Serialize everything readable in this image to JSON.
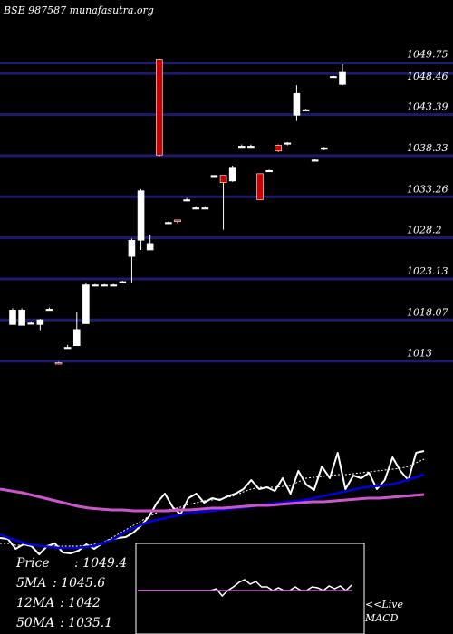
{
  "header": {
    "title": "BSE 987587 munafasutra.org"
  },
  "colors": {
    "background": "#000000",
    "gridline": "#1c1c6e",
    "bull_candle": "#ffffff",
    "bear_candle": "#cc0000",
    "price_line": "#ffffff",
    "ma_short": "#ffffff",
    "ma_mid": "#0000dd",
    "ma_long": "#cc55cc"
  },
  "chart_data": [
    {
      "type": "candlestick",
      "title": "BSE 987587 munafasutra.org",
      "ylim": [
        1008.5,
        1052.5
      ],
      "price_levels": [
        "1049.75",
        "1048.46",
        "1043.39",
        "1038.33",
        "1033.26",
        "1028.2",
        "1023.13",
        "1018.07",
        "1013"
      ],
      "candles": [
        {
          "o": 1017.5,
          "h": 1019.5,
          "l": 1017.5,
          "c": 1019.3
        },
        {
          "o": 1017.4,
          "h": 1019.5,
          "l": 1017.4,
          "c": 1019.3
        },
        {
          "o": 1017.7,
          "h": 1017.9,
          "l": 1017.6,
          "c": 1017.7
        },
        {
          "o": 1017.5,
          "h": 1018.2,
          "l": 1016.8,
          "c": 1018.1
        },
        {
          "o": 1019.4,
          "h": 1019.6,
          "l": 1019.3,
          "c": 1019.4
        },
        {
          "o": 1012.8,
          "h": 1012.9,
          "l": 1012.6,
          "c": 1012.7
        },
        {
          "o": 1014.7,
          "h": 1015.0,
          "l": 1014.6,
          "c": 1014.7
        },
        {
          "o": 1014.9,
          "h": 1019.1,
          "l": 1014.9,
          "c": 1016.9
        },
        {
          "o": 1017.6,
          "h": 1022.7,
          "l": 1017.6,
          "c": 1022.4
        },
        {
          "o": 1022.4,
          "h": 1022.5,
          "l": 1022.3,
          "c": 1022.4
        },
        {
          "o": 1022.4,
          "h": 1022.5,
          "l": 1022.3,
          "c": 1022.4
        },
        {
          "o": 1022.4,
          "h": 1022.5,
          "l": 1022.3,
          "c": 1022.4
        },
        {
          "o": 1022.7,
          "h": 1022.9,
          "l": 1022.7,
          "c": 1022.8
        },
        {
          "o": 1025.9,
          "h": 1028.1,
          "l": 1022.7,
          "c": 1027.9
        },
        {
          "o": 1027.9,
          "h": 1034.2,
          "l": 1026.7,
          "c": 1034.0
        },
        {
          "o": 1026.7,
          "h": 1028.6,
          "l": 1026.7,
          "c": 1027.5
        },
        {
          "o": 1050.2,
          "h": 1050.3,
          "l": 1038.2,
          "c": 1038.4
        },
        {
          "o": 1030.1,
          "h": 1030.2,
          "l": 1029.9,
          "c": 1030.1
        },
        {
          "o": 1030.4,
          "h": 1030.4,
          "l": 1030.0,
          "c": 1030.2
        },
        {
          "o": 1032.9,
          "h": 1033.1,
          "l": 1032.7,
          "c": 1032.9
        },
        {
          "o": 1031.9,
          "h": 1032.1,
          "l": 1031.8,
          "c": 1031.9
        },
        {
          "o": 1031.9,
          "h": 1032.1,
          "l": 1031.8,
          "c": 1031.9
        },
        {
          "o": 1035.9,
          "h": 1035.9,
          "l": 1035.9,
          "c": 1035.9
        },
        {
          "o": 1035.9,
          "h": 1035.9,
          "l": 1029.2,
          "c": 1035.0
        },
        {
          "o": 1035.2,
          "h": 1037.1,
          "l": 1035.1,
          "c": 1036.9
        },
        {
          "o": 1039.5,
          "h": 1039.7,
          "l": 1039.4,
          "c": 1039.5
        },
        {
          "o": 1039.5,
          "h": 1039.7,
          "l": 1039.4,
          "c": 1039.5
        },
        {
          "o": 1036.1,
          "h": 1036.1,
          "l": 1032.9,
          "c": 1032.9
        },
        {
          "o": 1036.5,
          "h": 1036.6,
          "l": 1036.4,
          "c": 1036.5
        },
        {
          "o": 1039.6,
          "h": 1039.7,
          "l": 1038.8,
          "c": 1038.9
        },
        {
          "o": 1039.8,
          "h": 1040.0,
          "l": 1039.6,
          "c": 1039.9
        },
        {
          "o": 1043.3,
          "h": 1047.0,
          "l": 1042.6,
          "c": 1046.0
        },
        {
          "o": 1044.0,
          "h": 1044.1,
          "l": 1043.9,
          "c": 1044.0
        },
        {
          "o": 1037.8,
          "h": 1037.9,
          "l": 1037.7,
          "c": 1037.8
        },
        {
          "o": 1039.1,
          "h": 1039.4,
          "l": 1039.0,
          "c": 1039.3
        },
        {
          "o": 1048.1,
          "h": 1048.2,
          "l": 1048.0,
          "c": 1048.1
        },
        {
          "o": 1047.1,
          "h": 1049.6,
          "l": 1047.0,
          "c": 1048.7
        }
      ]
    },
    {
      "type": "line",
      "series": [
        {
          "key": "price",
          "values": [
            594,
            595,
            606,
            601,
            603,
            612,
            603,
            600,
            610,
            611,
            608,
            601,
            606,
            600,
            596,
            594,
            593,
            588,
            580,
            570,
            555,
            545,
            560,
            568,
            550,
            545,
            555,
            550,
            552,
            548,
            545,
            540,
            530,
            540,
            538,
            542,
            528,
            545,
            520,
            535,
            541,
            515,
            528,
            500,
            540,
            525,
            528,
            522,
            540,
            530,
            505,
            520,
            530,
            500,
            498
          ]
        },
        {
          "key": "ma_short",
          "values": [
            600,
            600,
            602,
            602,
            602,
            603,
            603,
            603,
            603,
            603,
            603,
            602,
            601,
            599,
            595,
            590,
            585,
            580,
            575,
            570,
            566,
            563,
            562,
            560,
            557,
            555,
            553,
            552,
            551,
            549,
            547,
            543,
            540,
            538,
            538,
            538,
            537,
            536,
            532,
            528,
            527,
            526,
            525,
            524,
            524,
            523,
            522,
            521,
            520,
            519,
            518,
            517,
            515,
            511,
            507
          ]
        },
        {
          "key": "ma_mid",
          "values": [
            590,
            594,
            597,
            600,
            602,
            603,
            604,
            605,
            605,
            605,
            604,
            603,
            600,
            597,
            592,
            586,
            582,
            578,
            575,
            573,
            571,
            569,
            567,
            566,
            565,
            564,
            563,
            562,
            561,
            560,
            559,
            557,
            556,
            555,
            554,
            553,
            552,
            550,
            548,
            546,
            544,
            542,
            540,
            538,
            537,
            536,
            535,
            533,
            530,
            527,
            524
          ]
        },
        {
          "key": "ma_long",
          "values": [
            540,
            542,
            544,
            547,
            550,
            553,
            556,
            559,
            561,
            562,
            563,
            563,
            564,
            564,
            564,
            564,
            563,
            563,
            562,
            561,
            561,
            560,
            559,
            558,
            558,
            557,
            556,
            555,
            554,
            554,
            553,
            552,
            551,
            550,
            550,
            549,
            548,
            547,
            546
          ]
        }
      ]
    },
    {
      "type": "line",
      "series": [
        {
          "key": "macd",
          "values": [
            652,
            652,
            652,
            652,
            652,
            652,
            652,
            652,
            652,
            652,
            652,
            652,
            652,
            652,
            650,
            658,
            652,
            648,
            643,
            640,
            645,
            642,
            648,
            648,
            652,
            649,
            652,
            652,
            648,
            652,
            652,
            648,
            649,
            652,
            647,
            650,
            647,
            652,
            646
          ]
        },
        {
          "key": "signal",
          "values": [
            652,
            652,
            652,
            652,
            652,
            652,
            652,
            652,
            652,
            652,
            652,
            652,
            652,
            652,
            652,
            652,
            652,
            652,
            652,
            652,
            652,
            652,
            652,
            652,
            652,
            652,
            652,
            652,
            652,
            652,
            652,
            652,
            652,
            652,
            652,
            652,
            652,
            652,
            652
          ]
        }
      ]
    }
  ],
  "summary": [
    {
      "label": "Price",
      "value": ": 1049.4"
    },
    {
      "label": "5MA",
      "value": ": 1045.6"
    },
    {
      "label": "12MA",
      "value": ": 1042"
    },
    {
      "label": "50MA",
      "value": ": 1035.1"
    }
  ],
  "macd_label": {
    "line1": "<<Live",
    "line2": "MACD"
  }
}
